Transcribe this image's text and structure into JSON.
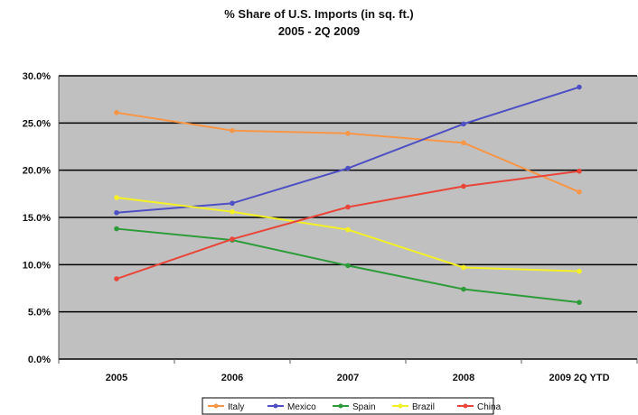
{
  "chart_data": {
    "type": "line",
    "title": "% Share of U.S. Imports (in sq. ft.)",
    "subtitle": "2005 - 2Q 2009",
    "categories": [
      "2005",
      "2006",
      "2007",
      "2008",
      "2009 2Q YTD"
    ],
    "y_ticks": [
      "0.0%",
      "5.0%",
      "10.0%",
      "15.0%",
      "20.0%",
      "25.0%",
      "30.0%"
    ],
    "ylim": [
      0,
      30
    ],
    "grid": true,
    "legend_position": "bottom",
    "plot_background": "#c0c0c0",
    "series": [
      {
        "name": "Italy",
        "color": "#f79646",
        "values": [
          26.1,
          24.2,
          23.9,
          22.9,
          17.7
        ]
      },
      {
        "name": "Mexico",
        "color": "#4f4fc4",
        "values": [
          15.5,
          16.5,
          20.2,
          24.9,
          28.8
        ]
      },
      {
        "name": "Spain",
        "color": "#2e9b3a",
        "values": [
          13.8,
          12.6,
          9.9,
          7.4,
          6.0
        ]
      },
      {
        "name": "Brazil",
        "color": "#f4f026",
        "values": [
          17.1,
          15.6,
          13.7,
          9.7,
          9.3
        ]
      },
      {
        "name": "China",
        "color": "#e8463a",
        "values": [
          8.5,
          12.7,
          16.1,
          18.3,
          19.9
        ]
      }
    ]
  }
}
